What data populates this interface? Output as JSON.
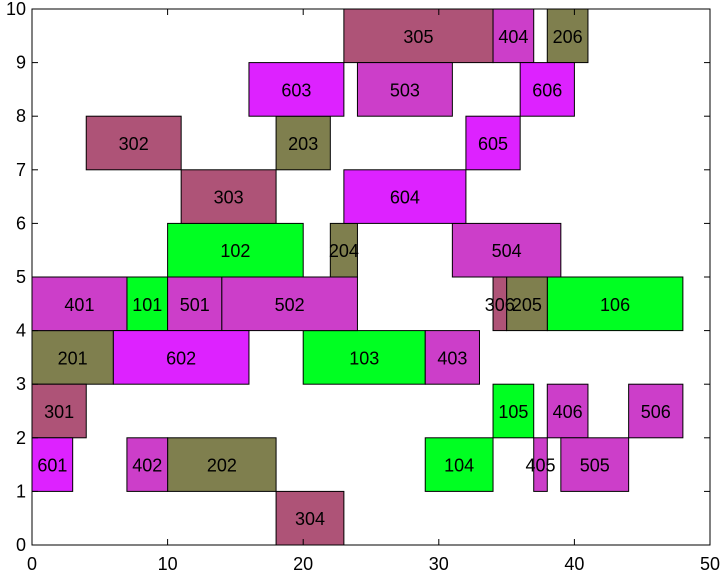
{
  "chart_data": {
    "type": "rectangles",
    "title": "",
    "xlabel": "",
    "ylabel": "",
    "xlim": [
      0,
      50
    ],
    "ylim": [
      0,
      10
    ],
    "xticks": [
      0,
      10,
      20,
      30,
      40,
      50
    ],
    "yticks": [
      0,
      1,
      2,
      3,
      4,
      5,
      6,
      7,
      8,
      9,
      10
    ],
    "grid": false,
    "legend": "none",
    "colors": {
      "green": "#00ff22",
      "olive": "#7f7f4e",
      "mauve": "#ae5377",
      "magenta": "#cc3ec9",
      "violet": "#dd22ff"
    },
    "boxes": [
      {
        "label": "101",
        "x0": 7,
        "x1": 10,
        "y0": 4,
        "y1": 5,
        "color": "green"
      },
      {
        "label": "102",
        "x0": 10,
        "x1": 20,
        "y0": 5,
        "y1": 6,
        "color": "green"
      },
      {
        "label": "103",
        "x0": 20,
        "x1": 29,
        "y0": 3,
        "y1": 4,
        "color": "green"
      },
      {
        "label": "104",
        "x0": 29,
        "x1": 34,
        "y0": 1,
        "y1": 2,
        "color": "green"
      },
      {
        "label": "105",
        "x0": 34,
        "x1": 37,
        "y0": 2,
        "y1": 3,
        "color": "green"
      },
      {
        "label": "106",
        "x0": 38,
        "x1": 48,
        "y0": 4,
        "y1": 5,
        "color": "green"
      },
      {
        "label": "201",
        "x0": 0,
        "x1": 6,
        "y0": 3,
        "y1": 4,
        "color": "olive"
      },
      {
        "label": "202",
        "x0": 10,
        "x1": 18,
        "y0": 1,
        "y1": 2,
        "color": "olive"
      },
      {
        "label": "203",
        "x0": 18,
        "x1": 22,
        "y0": 7,
        "y1": 8,
        "color": "olive"
      },
      {
        "label": "204",
        "x0": 22,
        "x1": 24,
        "y0": 5,
        "y1": 6,
        "color": "olive"
      },
      {
        "label": "205",
        "x0": 35,
        "x1": 38,
        "y0": 4,
        "y1": 5,
        "color": "olive"
      },
      {
        "label": "206",
        "x0": 38,
        "x1": 41,
        "y0": 9,
        "y1": 10,
        "color": "olive"
      },
      {
        "label": "301",
        "x0": 0,
        "x1": 4,
        "y0": 2,
        "y1": 3,
        "color": "mauve"
      },
      {
        "label": "302",
        "x0": 4,
        "x1": 11,
        "y0": 7,
        "y1": 8,
        "color": "mauve"
      },
      {
        "label": "303",
        "x0": 11,
        "x1": 18,
        "y0": 6,
        "y1": 7,
        "color": "mauve"
      },
      {
        "label": "304",
        "x0": 18,
        "x1": 23,
        "y0": 0,
        "y1": 1,
        "color": "mauve"
      },
      {
        "label": "305",
        "x0": 23,
        "x1": 34,
        "y0": 9,
        "y1": 10,
        "color": "mauve"
      },
      {
        "label": "306",
        "x0": 34,
        "x1": 35,
        "y0": 4,
        "y1": 5,
        "color": "mauve"
      },
      {
        "label": "401",
        "x0": 0,
        "x1": 7,
        "y0": 4,
        "y1": 5,
        "color": "magenta"
      },
      {
        "label": "402",
        "x0": 7,
        "x1": 10,
        "y0": 1,
        "y1": 2,
        "color": "magenta"
      },
      {
        "label": "403",
        "x0": 29,
        "x1": 33,
        "y0": 3,
        "y1": 4,
        "color": "magenta"
      },
      {
        "label": "404",
        "x0": 34,
        "x1": 37,
        "y0": 9,
        "y1": 10,
        "color": "magenta"
      },
      {
        "label": "405",
        "x0": 37,
        "x1": 38,
        "y0": 1,
        "y1": 2,
        "color": "magenta"
      },
      {
        "label": "406",
        "x0": 38,
        "x1": 41,
        "y0": 2,
        "y1": 3,
        "color": "magenta"
      },
      {
        "label": "501",
        "x0": 10,
        "x1": 14,
        "y0": 4,
        "y1": 5,
        "color": "magenta"
      },
      {
        "label": "502",
        "x0": 14,
        "x1": 24,
        "y0": 4,
        "y1": 5,
        "color": "magenta"
      },
      {
        "label": "503",
        "x0": 24,
        "x1": 31,
        "y0": 8,
        "y1": 9,
        "color": "magenta"
      },
      {
        "label": "504",
        "x0": 31,
        "x1": 39,
        "y0": 5,
        "y1": 6,
        "color": "magenta"
      },
      {
        "label": "505",
        "x0": 39,
        "x1": 44,
        "y0": 1,
        "y1": 2,
        "color": "magenta"
      },
      {
        "label": "506",
        "x0": 44,
        "x1": 48,
        "y0": 2,
        "y1": 3,
        "color": "magenta"
      },
      {
        "label": "601",
        "x0": 0,
        "x1": 3,
        "y0": 1,
        "y1": 2,
        "color": "violet"
      },
      {
        "label": "602",
        "x0": 6,
        "x1": 16,
        "y0": 3,
        "y1": 4,
        "color": "violet"
      },
      {
        "label": "603",
        "x0": 16,
        "x1": 23,
        "y0": 8,
        "y1": 9,
        "color": "violet"
      },
      {
        "label": "604",
        "x0": 23,
        "x1": 32,
        "y0": 6,
        "y1": 7,
        "color": "violet"
      },
      {
        "label": "605",
        "x0": 32,
        "x1": 36,
        "y0": 7,
        "y1": 8,
        "color": "violet"
      },
      {
        "label": "606",
        "x0": 36,
        "x1": 40,
        "y0": 8,
        "y1": 9,
        "color": "violet"
      }
    ]
  }
}
